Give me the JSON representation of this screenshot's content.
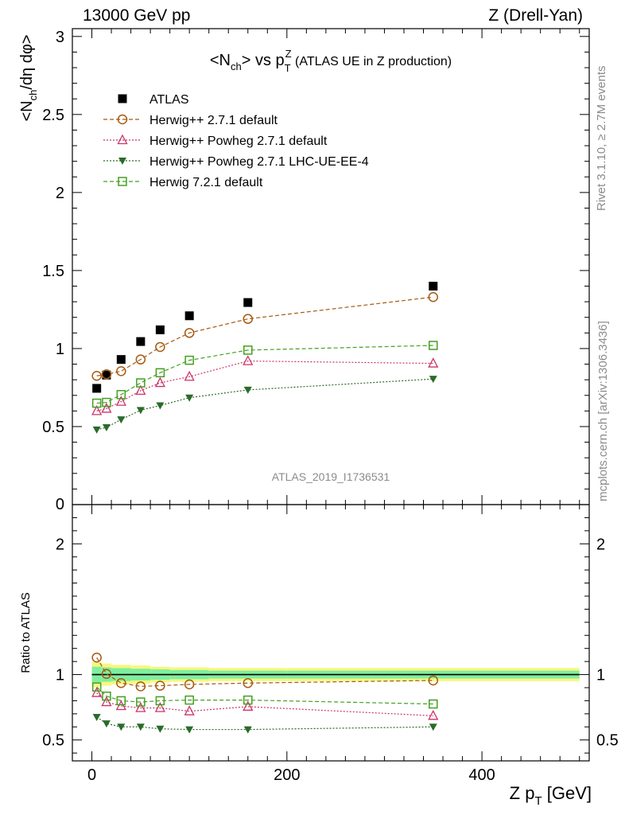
{
  "header": {
    "left": "13000 GeV pp",
    "right": "Z (Drell-Yan)"
  },
  "side_labels": {
    "rivet": "Rivet 3.1.10, ≥ 2.7M events",
    "mcplots": "mcplots.cern.ch [arXiv:1306.3436]"
  },
  "watermark": "ATLAS_2019_I1736531",
  "chart_data": [
    {
      "type": "scatter",
      "title_parts": {
        "a": "<N",
        "a_sub": "ch",
        "b": "> vs p",
        "b_sub": "T",
        "b_sup": "Z",
        "c": " (ATLAS UE in Z production)"
      },
      "ylabel_parts": {
        "a": "<N",
        "a_sub": "ch",
        "b": "/dη dφ>"
      },
      "xlim": [
        -20,
        510
      ],
      "ylim": [
        0,
        3.05
      ],
      "y_ticks": [
        {
          "v": 0.5,
          "label": "0.5"
        },
        {
          "v": 1,
          "label": "1"
        },
        {
          "v": 1.5,
          "label": "1.5"
        },
        {
          "v": 2,
          "label": "2"
        },
        {
          "v": 2.5,
          "label": "2.5"
        },
        {
          "v": 3,
          "label": "3"
        }
      ],
      "y_zero_label": "0",
      "legend_position": "top-left",
      "series": [
        {
          "name": "ATLAS",
          "marker": "filled-square",
          "color": "#000000",
          "line": "none",
          "x": [
            5,
            15,
            30,
            50,
            70,
            100,
            160,
            350
          ],
          "y": [
            0.745,
            0.83,
            0.93,
            1.045,
            1.12,
            1.21,
            1.295,
            1.4
          ]
        },
        {
          "name": "Herwig++ 2.7.1 default",
          "marker": "open-circle",
          "color": "#a65a10",
          "line": "dashed",
          "x": [
            5,
            15,
            30,
            50,
            70,
            100,
            160,
            350
          ],
          "y": [
            0.825,
            0.835,
            0.855,
            0.93,
            1.01,
            1.1,
            1.19,
            1.33
          ]
        },
        {
          "name": "Herwig++ Powheg 2.7.1 default",
          "marker": "open-triangle",
          "color": "#cc3366",
          "line": "dotted",
          "x": [
            5,
            15,
            30,
            50,
            70,
            100,
            160,
            350
          ],
          "y": [
            0.6,
            0.615,
            0.66,
            0.73,
            0.78,
            0.82,
            0.92,
            0.905
          ]
        },
        {
          "name": "Herwig++ Powheg 2.7.1 LHC-UE-EE-4",
          "marker": "filled-triangle-down",
          "color": "#2a6b2a",
          "line": "dotted",
          "x": [
            5,
            15,
            30,
            50,
            70,
            100,
            160,
            350
          ],
          "y": [
            0.48,
            0.495,
            0.545,
            0.605,
            0.635,
            0.685,
            0.735,
            0.805
          ]
        },
        {
          "name": "Herwig 7.2.1 default",
          "marker": "open-square",
          "color": "#44a020",
          "line": "dashed",
          "x": [
            5,
            15,
            30,
            50,
            70,
            100,
            160,
            350
          ],
          "y": [
            0.65,
            0.655,
            0.705,
            0.78,
            0.845,
            0.925,
            0.99,
            1.02
          ]
        }
      ]
    },
    {
      "type": "scatter",
      "ylabel": "Ratio to ATLAS",
      "xlabel_parts": {
        "a": "Z p",
        "sub": "T",
        "b": " [GeV]"
      },
      "xlim": [
        -20,
        510
      ],
      "ylim": [
        0.34,
        2.3
      ],
      "y_ticks": [
        {
          "v": 0.5,
          "label": "0.5"
        },
        {
          "v": 1,
          "label": "1"
        },
        {
          "v": 2,
          "label": "2"
        }
      ],
      "x_ticks": [
        {
          "v": 0,
          "label": "0"
        },
        {
          "v": 200,
          "label": "200"
        },
        {
          "v": 400,
          "label": "400"
        }
      ],
      "uncertainty_band": {
        "x_edges": [
          0,
          10,
          20,
          40,
          60,
          80,
          120,
          200,
          500
        ],
        "inner": [
          0.06,
          0.055,
          0.05,
          0.045,
          0.04,
          0.035,
          0.03,
          0.03
        ],
        "outer": [
          0.095,
          0.085,
          0.075,
          0.07,
          0.06,
          0.055,
          0.05,
          0.05
        ],
        "inner_color": "#7fef9f",
        "outer_color": "#f7f77f"
      },
      "reference_line": 1,
      "series": [
        {
          "name": "Herwig++ 2.7.1 default",
          "marker": "open-circle",
          "color": "#a65a10",
          "line": "dashed",
          "x": [
            5,
            15,
            30,
            50,
            70,
            100,
            160,
            350
          ],
          "y": [
            1.13,
            1.005,
            0.935,
            0.91,
            0.915,
            0.925,
            0.935,
            0.955
          ]
        },
        {
          "name": "Herwig++ Powheg 2.7.1 default",
          "marker": "open-triangle",
          "color": "#cc3366",
          "line": "dotted",
          "x": [
            5,
            15,
            30,
            50,
            70,
            100,
            160,
            350
          ],
          "y": [
            0.86,
            0.79,
            0.76,
            0.745,
            0.745,
            0.72,
            0.755,
            0.685
          ]
        },
        {
          "name": "Herwig++ Powheg 2.7.1 LHC-UE-EE-4",
          "marker": "filled-triangle-down",
          "color": "#2a6b2a",
          "line": "dotted",
          "x": [
            5,
            15,
            30,
            50,
            70,
            100,
            160,
            350
          ],
          "y": [
            0.675,
            0.625,
            0.6,
            0.6,
            0.585,
            0.58,
            0.58,
            0.6
          ]
        },
        {
          "name": "Herwig 7.2.1 default",
          "marker": "open-square",
          "color": "#44a020",
          "line": "dashed",
          "x": [
            5,
            15,
            30,
            50,
            70,
            100,
            160,
            350
          ],
          "y": [
            0.905,
            0.835,
            0.8,
            0.79,
            0.8,
            0.805,
            0.805,
            0.775
          ]
        }
      ]
    }
  ]
}
